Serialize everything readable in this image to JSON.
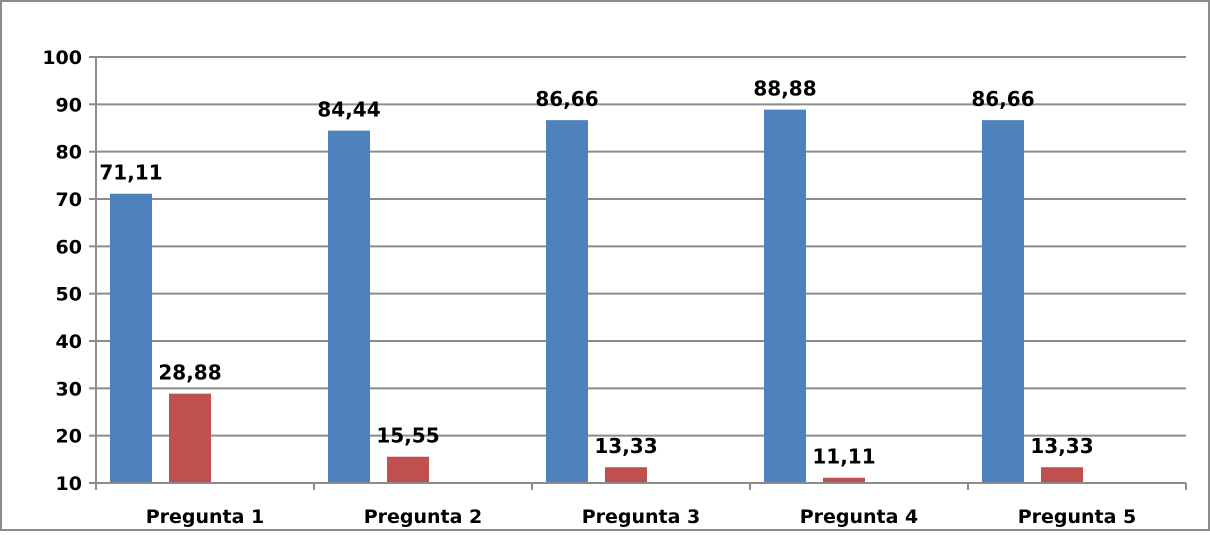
{
  "chart_data": {
    "type": "bar",
    "categories": [
      "Pregunta 1",
      "Pregunta 2",
      "Pregunta 3",
      "Pregunta 4",
      "Pregunta 5"
    ],
    "series": [
      {
        "values": [
          71.11,
          84.44,
          86.66,
          88.88,
          86.66
        ],
        "labels": [
          "71,11",
          "84,44",
          "86,66",
          "88,88",
          "86,66"
        ],
        "color": "#4F81BD"
      },
      {
        "values": [
          28.88,
          15.55,
          13.33,
          11.11,
          13.33
        ],
        "labels": [
          "28,88",
          "15,55",
          "13,33",
          "11,11",
          "13,33"
        ],
        "color": "#C0504D"
      }
    ],
    "ylim": [
      10,
      100
    ],
    "yticks": [
      10,
      20,
      30,
      40,
      50,
      60,
      70,
      80,
      90,
      100
    ],
    "grid": true,
    "legend": "none",
    "title": "",
    "xlabel": "",
    "ylabel": ""
  }
}
